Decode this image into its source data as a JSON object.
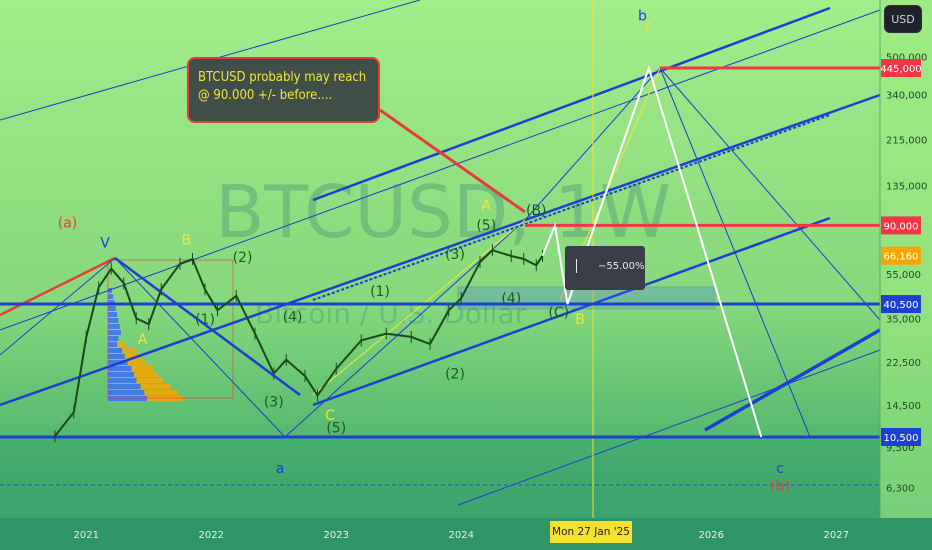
{
  "app": {
    "currency_button": "USD"
  },
  "callout": {
    "line1": "BTCUSD probably may reach",
    "line2": "@ 90.000 +/- before...."
  },
  "measure": {
    "value": "−55.00%"
  },
  "crosshair": {
    "date_label": "Mon 27 Jan '25"
  },
  "watermark": {
    "symbol": "BTCUSD, 1W",
    "name": "Bitcoin / U.S. Dollar"
  },
  "chart_data": {
    "type": "candlestick",
    "symbol": "BTCUSD",
    "interval": "1W",
    "y_scale": "log",
    "x_ticks": [
      "2021",
      "2022",
      "2023",
      "2024",
      "2025",
      "2026",
      "2027"
    ],
    "y_ticks": [
      500000,
      340000,
      215000,
      135000,
      55000,
      35000,
      22500,
      14500,
      9500,
      6300
    ],
    "y_tick_labels": [
      "500,000",
      "340,000",
      "215,000",
      "135,000",
      "55,000",
      "35,000",
      "22,500",
      "14,500",
      "9,500",
      "6,300"
    ],
    "price_badges": [
      {
        "label": "445,000",
        "value": 445000,
        "color": "#f23645"
      },
      {
        "label": "90,000",
        "value": 90000,
        "color": "#f23645"
      },
      {
        "label": "66,160",
        "value": 66160,
        "color": "#f7a600"
      },
      {
        "label": "40,500",
        "value": 40500,
        "color": "#1e3fd0"
      },
      {
        "label": "10,500",
        "value": 10500,
        "color": "#1e3fd0"
      }
    ],
    "horizontal_levels": [
      {
        "value": 445000,
        "color": "#f23645"
      },
      {
        "value": 90000,
        "color": "#f23645"
      },
      {
        "value": 40500,
        "color": "#1e3fd0"
      },
      {
        "value": 10500,
        "color": "#1e3fd0"
      }
    ],
    "price_path": [
      [
        2020.75,
        10600
      ],
      [
        2020.9,
        13500
      ],
      [
        2021.0,
        29000
      ],
      [
        2021.1,
        48000
      ],
      [
        2021.2,
        58000
      ],
      [
        2021.3,
        50000
      ],
      [
        2021.4,
        35000
      ],
      [
        2021.5,
        33000
      ],
      [
        2021.6,
        47000
      ],
      [
        2021.75,
        61000
      ],
      [
        2021.85,
        64000
      ],
      [
        2021.95,
        47000
      ],
      [
        2022.05,
        38000
      ],
      [
        2022.2,
        44000
      ],
      [
        2022.35,
        30000
      ],
      [
        2022.5,
        20000
      ],
      [
        2022.6,
        23000
      ],
      [
        2022.75,
        19500
      ],
      [
        2022.85,
        16000
      ],
      [
        2023.0,
        21000
      ],
      [
        2023.2,
        28000
      ],
      [
        2023.4,
        30000
      ],
      [
        2023.6,
        29000
      ],
      [
        2023.75,
        27000
      ],
      [
        2023.9,
        38000
      ],
      [
        2024.0,
        43000
      ],
      [
        2024.15,
        62000
      ],
      [
        2024.25,
        70000
      ],
      [
        2024.4,
        66000
      ],
      [
        2024.5,
        64000
      ],
      [
        2024.6,
        60000
      ],
      [
        2024.65,
        66160
      ]
    ],
    "projection_path": [
      [
        2024.65,
        66160
      ],
      [
        2024.75,
        90000
      ],
      [
        2024.85,
        40500
      ],
      [
        2025.5,
        445000
      ],
      [
        2026.4,
        10500
      ]
    ],
    "measure_pct": -55.0,
    "wave_labels": [
      {
        "text": "(a)",
        "x": 2020.85,
        "y": 88000,
        "color": "#e83b3b"
      },
      {
        "text": "V",
        "x": 2021.15,
        "y": 72000,
        "color": "#1e3fd0"
      },
      {
        "text": "B",
        "x": 2021.8,
        "y": 74000,
        "color": "#f2e43a"
      },
      {
        "text": "(2)",
        "x": 2022.25,
        "y": 62000,
        "color": "#1e5d1e"
      },
      {
        "text": "A",
        "x": 2021.45,
        "y": 27000,
        "color": "#f2e43a"
      },
      {
        "text": "(1)",
        "x": 2021.95,
        "y": 33000,
        "color": "#1e5d1e"
      },
      {
        "text": "(4)",
        "x": 2022.65,
        "y": 34000,
        "color": "#1e5d1e"
      },
      {
        "text": "(3)",
        "x": 2022.5,
        "y": 14300,
        "color": "#1e5d1e"
      },
      {
        "text": "C",
        "x": 2022.95,
        "y": 12500,
        "color": "#f2e43a"
      },
      {
        "text": "(5)",
        "x": 2023.0,
        "y": 11000,
        "color": "#1e5d1e"
      },
      {
        "text": "(1)",
        "x": 2023.35,
        "y": 44000,
        "color": "#1e5d1e"
      },
      {
        "text": "(2)",
        "x": 2023.95,
        "y": 19000,
        "color": "#1e5d1e"
      },
      {
        "text": "(3)",
        "x": 2023.95,
        "y": 64000,
        "color": "#1e5d1e"
      },
      {
        "text": "(5)",
        "x": 2024.2,
        "y": 86000,
        "color": "#1e5d1e"
      },
      {
        "text": "A",
        "x": 2024.2,
        "y": 105000,
        "color": "#f2e43a"
      },
      {
        "text": "(B)",
        "x": 2024.6,
        "y": 100000,
        "color": "#1e5d1e"
      },
      {
        "text": "(4)",
        "x": 2024.4,
        "y": 41000,
        "color": "#1e5d1e"
      },
      {
        "text": "(C)",
        "x": 2024.78,
        "y": 35500,
        "color": "#1e5d1e"
      },
      {
        "text": "B",
        "x": 2024.95,
        "y": 33000,
        "color": "#f2e43a"
      },
      {
        "text": "b",
        "x": 2025.45,
        "y": 720000,
        "color": "#1e3fd0"
      },
      {
        "text": "c",
        "x": 2025.5,
        "y": 650000,
        "color": "#f2e43a"
      },
      {
        "text": "a",
        "x": 2022.55,
        "y": 7300,
        "color": "#1e3fd0"
      },
      {
        "text": "c",
        "x": 2026.55,
        "y": 7300,
        "color": "#1e3fd0"
      },
      {
        "text": "(b)",
        "x": 2026.55,
        "y": 6100,
        "color": "#e83b3b"
      }
    ],
    "colors": {
      "background_top": "#a6ef8c",
      "background_bottom": "#3fa86a",
      "channel_blue": "#1e3fd0",
      "level_red": "#f23645",
      "volume_profile": [
        "#3f6ef5",
        "#f7a600"
      ]
    }
  }
}
